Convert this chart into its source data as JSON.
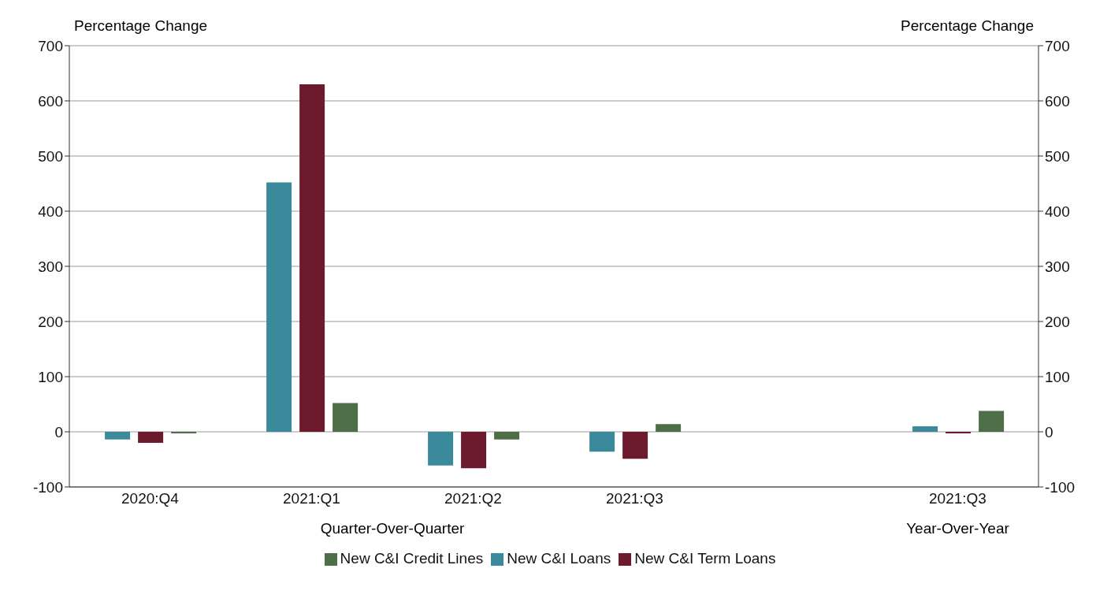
{
  "chart_data": {
    "type": "bar",
    "ylabel": "Percentage Change",
    "y2label": "Percentage Change",
    "categories": [
      "2020:Q4",
      "2021:Q1",
      "2021:Q2",
      "2021:Q3",
      null,
      "2021:Q3"
    ],
    "series": [
      {
        "name": "New C&I Loans",
        "color": "#3a8a9c",
        "values": [
          -14,
          452,
          -61,
          -36,
          null,
          10
        ]
      },
      {
        "name": "New C&I Term Loans",
        "color": "#6e1a2e",
        "values": [
          -20,
          630,
          -66,
          -49,
          null,
          -3
        ]
      },
      {
        "name": "New C&I Credit Lines",
        "color": "#4e6e48",
        "values": [
          -3,
          52,
          -14,
          14,
          null,
          38
        ]
      }
    ],
    "ylim": [
      -100,
      700
    ],
    "yticks": [
      -100,
      0,
      100,
      200,
      300,
      400,
      500,
      600,
      700
    ],
    "y2lim": [
      -100,
      700
    ],
    "y2ticks": [
      -100,
      0,
      100,
      200,
      300,
      400,
      500,
      600,
      700
    ],
    "annotations": [
      "Quarter-Over-Quarter",
      "Year-Over-Year"
    ],
    "grid": "y",
    "legend": "bottom"
  }
}
